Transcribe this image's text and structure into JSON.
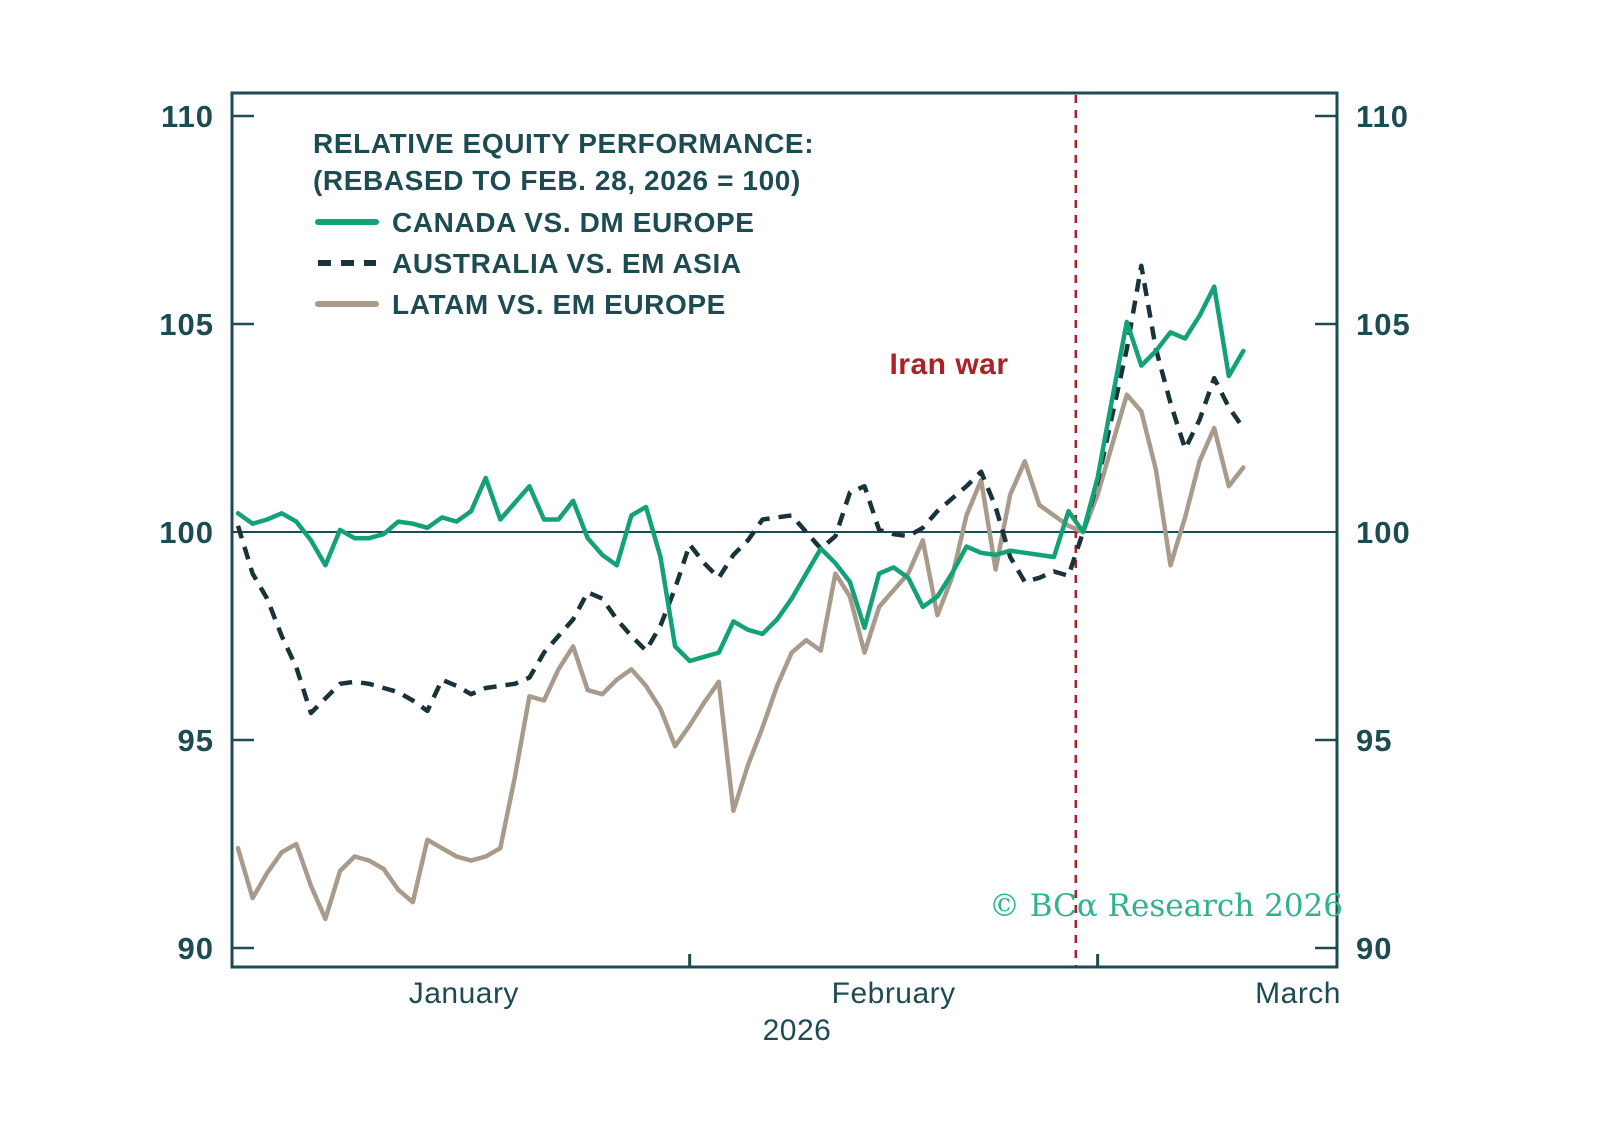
{
  "chart_data": {
    "type": "line",
    "title": "RELATIVE EQUITY PERFORMANCE:",
    "subtitle": "(REBASED TO FEB. 28, 2026 = 100)",
    "year_label": "2026",
    "watermark": "© BCα Research 2026",
    "baseline": 100,
    "ylim": [
      89.5,
      110.5
    ],
    "yticks": [
      90,
      95,
      100,
      105,
      110
    ],
    "grid": "off",
    "legend_position": "top-left-inside",
    "event": {
      "label": "Iran war",
      "day": 57.5,
      "color": "#aa2127"
    },
    "x_axis": {
      "month_labels": [
        "January",
        "February",
        "March"
      ],
      "month_start_days": [
        0,
        31,
        59
      ],
      "month_tick_days": [
        31,
        59
      ]
    },
    "x_labels": [
      "Jan 1",
      "Jan 2",
      "Jan 3",
      "Jan 4",
      "Jan 5",
      "Jan 6",
      "Jan 7",
      "Jan 8",
      "Jan 9",
      "Jan 10",
      "Jan 11",
      "Jan 12",
      "Jan 13",
      "Jan 14",
      "Jan 15",
      "Jan 16",
      "Jan 17",
      "Jan 18",
      "Jan 19",
      "Jan 20",
      "Jan 21",
      "Jan 22",
      "Jan 23",
      "Jan 24",
      "Jan 25",
      "Jan 26",
      "Jan 27",
      "Jan 28",
      "Jan 29",
      "Jan 30",
      "Jan 31",
      "Feb 1",
      "Feb 2",
      "Feb 3",
      "Feb 4",
      "Feb 5",
      "Feb 6",
      "Feb 7",
      "Feb 8",
      "Feb 9",
      "Feb 10",
      "Feb 11",
      "Feb 12",
      "Feb 13",
      "Feb 14",
      "Feb 15",
      "Feb 16",
      "Feb 17",
      "Feb 18",
      "Feb 19",
      "Feb 20",
      "Feb 21",
      "Feb 22",
      "Feb 23",
      "Feb 24",
      "Feb 25",
      "Feb 26",
      "Feb 27",
      "Feb 28",
      "Mar 1",
      "Mar 2",
      "Mar 3",
      "Mar 4",
      "Mar 5",
      "Mar 6",
      "Mar 7",
      "Mar 8",
      "Mar 9",
      "Mar 10",
      "Mar 11"
    ],
    "series": [
      {
        "name": "CANADA VS. DM EUROPE",
        "style": "solid",
        "color": "#13a277",
        "values": [
          100.45,
          100.2,
          100.3,
          100.45,
          100.25,
          99.8,
          99.2,
          100.05,
          99.85,
          99.85,
          99.95,
          100.25,
          100.2,
          100.1,
          100.35,
          100.25,
          100.5,
          101.3,
          100.3,
          100.7,
          101.1,
          100.3,
          100.3,
          100.75,
          99.85,
          99.45,
          99.2,
          100.4,
          100.6,
          99.4,
          97.25,
          96.9,
          97.0,
          97.1,
          97.85,
          97.65,
          97.55,
          97.9,
          98.4,
          99.0,
          99.6,
          99.25,
          98.8,
          97.7,
          99.0,
          99.15,
          98.9,
          98.2,
          98.45,
          99.0,
          99.65,
          99.5,
          99.45,
          99.55,
          99.5,
          99.45,
          99.4,
          100.5,
          100.0,
          101.3,
          103.2,
          105.05,
          104.0,
          104.35,
          104.8,
          104.65,
          105.2,
          105.9,
          103.75,
          104.35
        ]
      },
      {
        "name": "AUSTRALIA VS. EM ASIA",
        "style": "dashed",
        "color": "#1a333b",
        "values": [
          100.15,
          99.0,
          98.4,
          97.5,
          96.75,
          95.65,
          96.0,
          96.35,
          96.4,
          96.35,
          96.25,
          96.15,
          95.95,
          95.7,
          96.45,
          96.3,
          96.1,
          96.25,
          96.3,
          96.35,
          96.5,
          97.1,
          97.5,
          97.9,
          98.55,
          98.4,
          97.9,
          97.5,
          97.15,
          97.75,
          98.65,
          99.7,
          99.25,
          98.9,
          99.45,
          99.8,
          100.3,
          100.35,
          100.4,
          100.0,
          99.6,
          99.9,
          100.95,
          101.1,
          100.05,
          99.95,
          99.9,
          100.1,
          100.5,
          100.8,
          101.1,
          101.45,
          100.6,
          99.4,
          98.8,
          98.9,
          99.05,
          98.95,
          100.0,
          101.2,
          102.8,
          104.4,
          106.4,
          104.4,
          103.1,
          102.0,
          102.7,
          103.7,
          103.0,
          102.5
        ]
      },
      {
        "name": "LATAM VS. EM EUROPE",
        "style": "solid",
        "color": "#a89b8b",
        "values": [
          92.4,
          91.2,
          91.8,
          92.3,
          92.5,
          91.5,
          90.7,
          91.85,
          92.2,
          92.1,
          91.9,
          91.4,
          91.1,
          92.6,
          92.4,
          92.2,
          92.1,
          92.2,
          92.4,
          94.1,
          96.05,
          95.95,
          96.7,
          97.25,
          96.2,
          96.1,
          96.45,
          96.7,
          96.3,
          95.75,
          94.85,
          95.35,
          95.9,
          96.4,
          93.3,
          94.4,
          95.3,
          96.3,
          97.1,
          97.4,
          97.15,
          99.0,
          98.45,
          97.1,
          98.2,
          98.6,
          99.0,
          99.8,
          98.0,
          98.9,
          100.4,
          101.25,
          99.1,
          100.9,
          101.7,
          100.65,
          100.4,
          100.15,
          100.0,
          100.9,
          102.1,
          103.3,
          102.9,
          101.5,
          99.2,
          100.35,
          101.7,
          102.5,
          101.1,
          101.55
        ]
      }
    ],
    "colors": {
      "axis": "#1d4b52",
      "text": "#1d4b52",
      "event_line": "#aa2127",
      "watermark": "#2db48b"
    }
  }
}
